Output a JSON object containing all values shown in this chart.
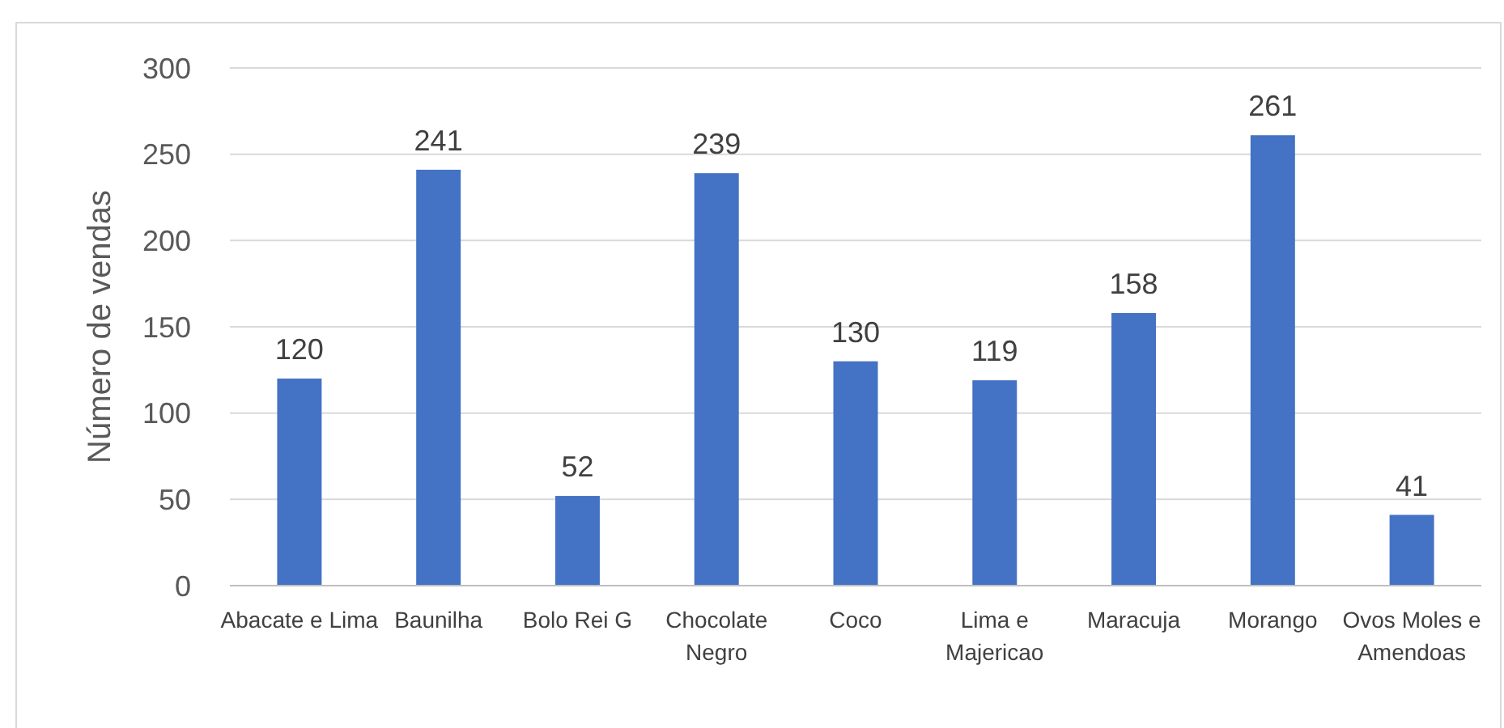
{
  "chart_data": {
    "type": "bar",
    "ylabel": "Número de vendas",
    "categories": [
      "Abacate e Lima",
      "Baunilha",
      "Bolo Rei G",
      "Chocolate Negro",
      "Coco",
      "Lima e Majericao",
      "Maracuja",
      "Morango",
      "Ovos Moles e Amendoas"
    ],
    "values": [
      120,
      241,
      52,
      239,
      130,
      119,
      158,
      261,
      41
    ],
    "color": "#4472c4",
    "ylim": [
      0,
      300
    ],
    "yticks": [
      0,
      50,
      100,
      150,
      200,
      250,
      300
    ],
    "grid": "y",
    "data_labels": true
  }
}
